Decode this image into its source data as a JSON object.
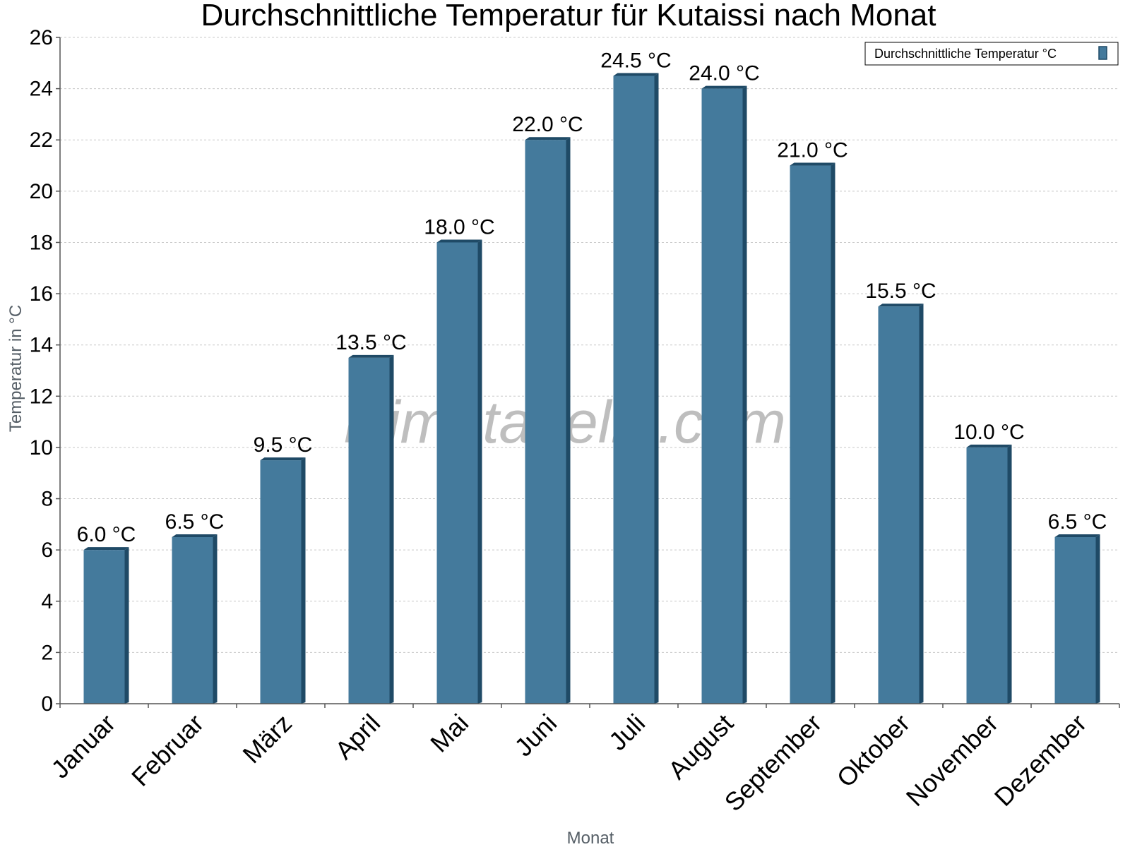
{
  "chart_data": {
    "type": "bar",
    "title": "Durchschnittliche Temperatur für Kutaissi nach Monat",
    "xlabel": "Monat",
    "ylabel": "Temperatur in °C",
    "categories": [
      "Januar",
      "Februar",
      "März",
      "April",
      "Mai",
      "Juni",
      "Juli",
      "August",
      "September",
      "Oktober",
      "November",
      "Dezember"
    ],
    "series": [
      {
        "name": "Durchschnittliche Temperatur °C",
        "values": [
          6.0,
          6.5,
          9.5,
          13.5,
          18.0,
          22.0,
          24.5,
          24.0,
          21.0,
          15.5,
          10.0,
          6.5
        ],
        "data_labels": [
          "6.0 °C",
          "6.5 °C",
          "9.5 °C",
          "13.5 °C",
          "18.0 °C",
          "22.0 °C",
          "24.5 °C",
          "24.0 °C",
          "21.0 °C",
          "15.5 °C",
          "10.0 °C",
          "6.5 °C"
        ]
      }
    ],
    "ylim": [
      0,
      26
    ],
    "yticks": [
      0,
      2,
      4,
      6,
      8,
      10,
      12,
      14,
      16,
      18,
      20,
      22,
      24,
      26
    ],
    "grid": true,
    "legend_position": "top-right",
    "colors": {
      "bar": "#447a9c",
      "bar_dark": "#1f4a66",
      "grid": "#c8c8c8"
    }
  },
  "watermark": "klimatabelle.com"
}
